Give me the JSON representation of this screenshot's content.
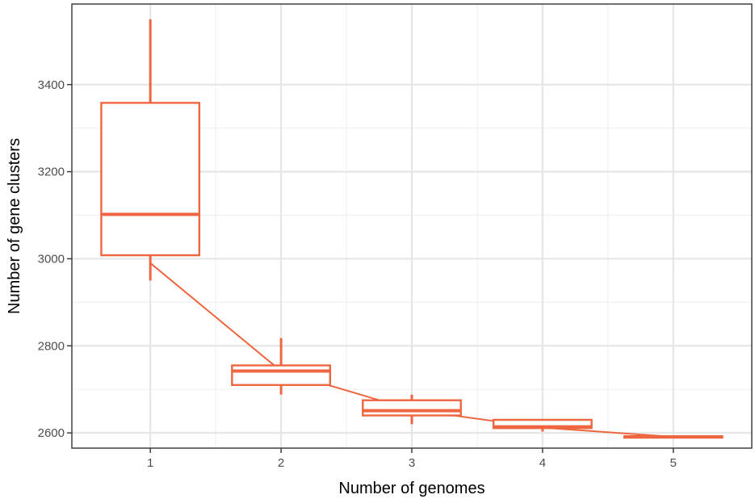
{
  "chart_data": {
    "type": "boxplot",
    "xlabel": "Number of genomes",
    "ylabel": "Number of gene clusters",
    "categories": [
      "1",
      "2",
      "3",
      "4",
      "5"
    ],
    "ylim": [
      2565,
      3585
    ],
    "yticks": [
      2600,
      2800,
      3000,
      3200,
      3400
    ],
    "grid": true,
    "color": "#EE6640",
    "boxes": [
      {
        "x": "1",
        "whisker_low": 2950,
        "q1": 3008,
        "median": 3102,
        "q3": 3358,
        "whisker_high": 3550
      },
      {
        "x": "2",
        "whisker_low": 2688,
        "q1": 2710,
        "median": 2742,
        "q3": 2755,
        "whisker_high": 2818
      },
      {
        "x": "3",
        "whisker_low": 2620,
        "q1": 2640,
        "median": 2651,
        "q3": 2675,
        "whisker_high": 2688
      },
      {
        "x": "4",
        "whisker_low": 2603,
        "q1": 2611,
        "median": 2614,
        "q3": 2630,
        "whisker_high": 2632
      },
      {
        "x": "5",
        "whisker_low": 2589,
        "q1": 2589,
        "median": 2591,
        "q3": 2592,
        "whisker_high": 2593
      }
    ],
    "line": [
      {
        "x": 1,
        "y": 2990
      },
      {
        "x": 2,
        "y": 2742
      },
      {
        "x": 3,
        "y": 2653
      },
      {
        "x": 4,
        "y": 2612
      },
      {
        "x": 5,
        "y": 2591
      }
    ]
  }
}
